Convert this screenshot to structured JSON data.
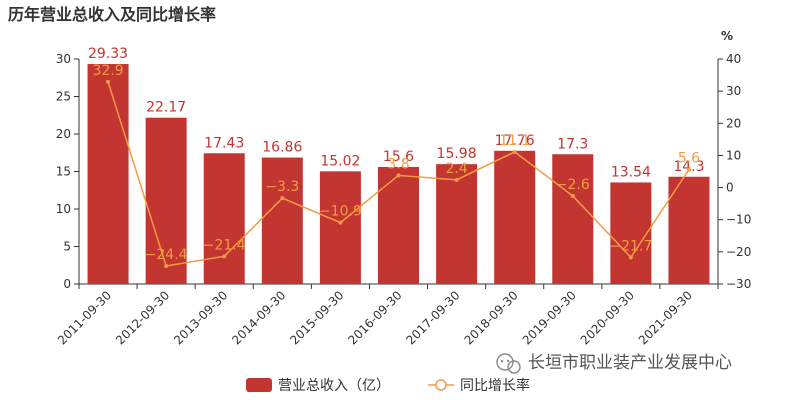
{
  "chart_data": {
    "type": "bar",
    "title": "历年营业总收入及同比增长率",
    "categories": [
      "2011-09-30",
      "2012-09-30",
      "2013-09-30",
      "2014-09-30",
      "2015-09-30",
      "2016-09-30",
      "2017-09-30",
      "2018-09-30",
      "2019-09-30",
      "2020-09-30",
      "2021-09-30"
    ],
    "series": [
      {
        "name": "营业总收入（亿）",
        "type": "bar",
        "axis": "left",
        "values": [
          29.33,
          22.17,
          17.43,
          16.86,
          15.02,
          15.6,
          15.98,
          17.76,
          17.3,
          13.54,
          14.3
        ],
        "labels": [
          "29.33",
          "22.17",
          "17.43",
          "16.86",
          "15.02",
          "15.6",
          "15.98",
          "17.76",
          "17.3",
          "13.54",
          "14.3"
        ],
        "color": "#c23531"
      },
      {
        "name": "同比增长率",
        "type": "line",
        "axis": "right",
        "values": [
          32.9,
          -24.4,
          -21.4,
          -3.3,
          -10.9,
          3.8,
          2.4,
          11.1,
          -2.6,
          -21.7,
          5.6
        ],
        "labels": [
          "32.9",
          "−24.4",
          "−21.4",
          "−3.3",
          "−10.9",
          "3.8",
          "2.4",
          "11.1",
          "−2.6",
          "−21.7",
          "5.6"
        ],
        "color": "#f49c43"
      }
    ],
    "y_left": {
      "min": 0,
      "max": 30,
      "ticks": [
        "0",
        "5",
        "10",
        "15",
        "20",
        "25",
        "30"
      ]
    },
    "y_right": {
      "min": -30,
      "max": 40,
      "unit": "%",
      "ticks": [
        "−30",
        "−20",
        "−10",
        "0",
        "10",
        "20",
        "30",
        "40"
      ]
    },
    "grid": false,
    "legend": "bottom-center"
  },
  "watermark": {
    "text": "长垣市职业装产业发展中心"
  }
}
